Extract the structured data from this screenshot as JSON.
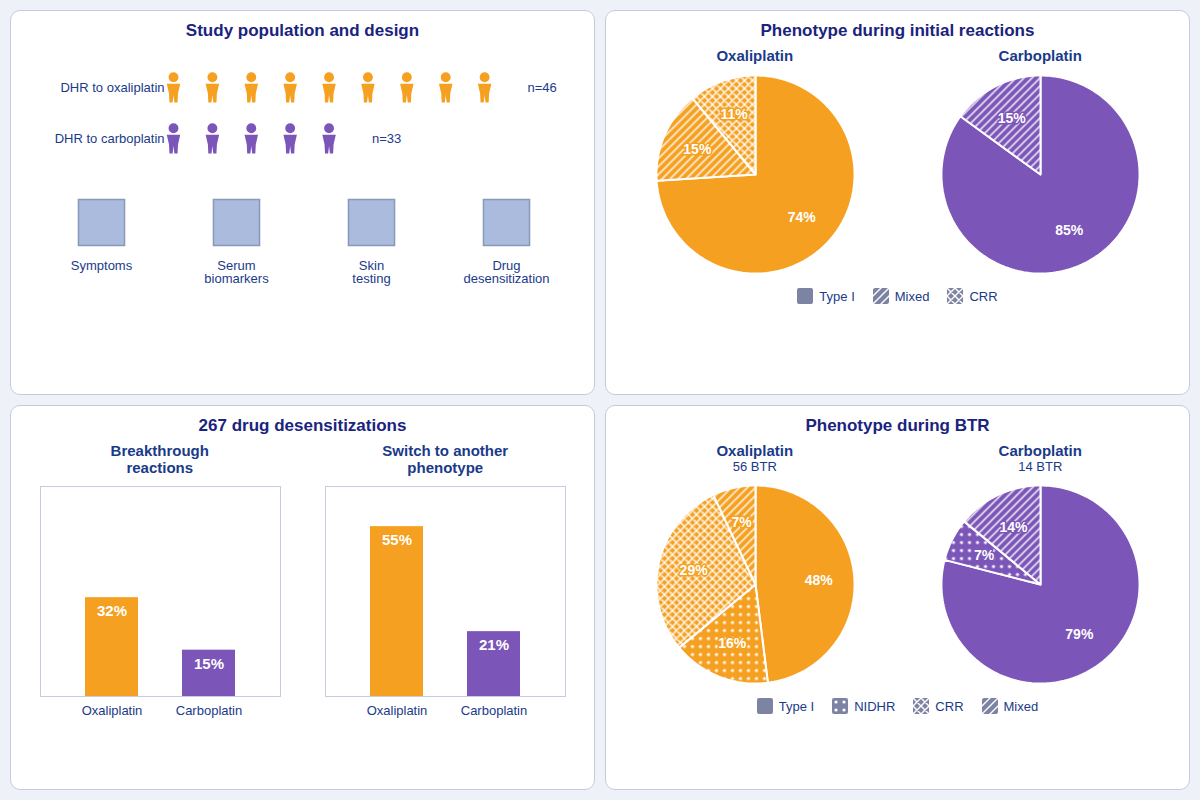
{
  "chart_data": [
    {
      "type": "pictogram",
      "title": "Study population and design",
      "categories": [
        "DHR to oxaliplatin",
        "DHR to carboplatin"
      ],
      "values": [
        9,
        5
      ],
      "colors": [
        "#f5a020",
        "#7b55b8"
      ],
      "annotations": [
        "n=46",
        "n=33"
      ]
    },
    {
      "type": "flow",
      "categories": [
        "Symptoms",
        "Serum\nbiomarkers",
        "Skin\ntesting",
        "Drug\ndesensitization"
      ]
    },
    {
      "type": "pie",
      "title": "Phenotype during initial reactions",
      "subtitle": "Oxaliplatin",
      "categories": [
        "Type I",
        "Mixed",
        "CRR"
      ],
      "values": [
        74,
        15,
        11
      ],
      "value_labels": [
        "74%",
        "15%",
        "11%"
      ],
      "colors": [
        "#f5a020",
        "#f5a020",
        "#f5a020"
      ],
      "data_labels": true,
      "legend": "bottom"
    },
    {
      "type": "pie",
      "subtitle": "Carboplatin",
      "categories": [
        "Type I",
        "Mixed"
      ],
      "values": [
        85,
        15
      ],
      "value_labels": [
        "85%",
        "15%"
      ],
      "colors": [
        "#7b55b8",
        "#7b55b8"
      ],
      "data_labels": true
    },
    {
      "type": "bar",
      "title": "267 drug desensitizations",
      "subtitle": "Breakthrough\nreactions",
      "categories": [
        "Oxaliplatin",
        "Carboplatin"
      ],
      "values": [
        32,
        15
      ],
      "value_labels": [
        "32%",
        "15%"
      ],
      "colors": [
        "#f5a020",
        "#7b55b8"
      ],
      "ylim": [
        0,
        68
      ],
      "data_labels": true,
      "tick_labels": "x"
    },
    {
      "type": "bar",
      "subtitle": "Switch to another\nphenotype",
      "categories": [
        "Oxaliplatin",
        "Carboplatin"
      ],
      "values": [
        55,
        21
      ],
      "value_labels": [
        "55%",
        "21%"
      ],
      "colors": [
        "#f5a020",
        "#7b55b8"
      ],
      "ylim": [
        0,
        68
      ],
      "data_labels": true,
      "tick_labels": "x"
    },
    {
      "type": "pie",
      "title": "Phenotype during BTR",
      "subtitle": "Oxaliplatin",
      "annotations": [
        "56 BTR"
      ],
      "categories": [
        "Type I",
        "NIDHR",
        "CRR",
        "Mixed"
      ],
      "values": [
        48,
        16,
        29,
        7
      ],
      "value_labels": [
        "48%",
        "16%",
        "29%",
        "7%"
      ],
      "colors": [
        "#f5a020",
        "#f5a020",
        "#f5a020",
        "#f5a020"
      ],
      "data_labels": true,
      "legend": "bottom"
    },
    {
      "type": "pie",
      "subtitle": "Carboplatin",
      "annotations": [
        "14 BTR"
      ],
      "categories": [
        "Type I",
        "NIDHR",
        "Mixed"
      ],
      "values": [
        79,
        7,
        14
      ],
      "value_labels": [
        "79%",
        "7%",
        "14%"
      ],
      "colors": [
        "#7b55b8",
        "#7b55b8",
        "#7b55b8"
      ],
      "data_labels": true
    }
  ]
}
